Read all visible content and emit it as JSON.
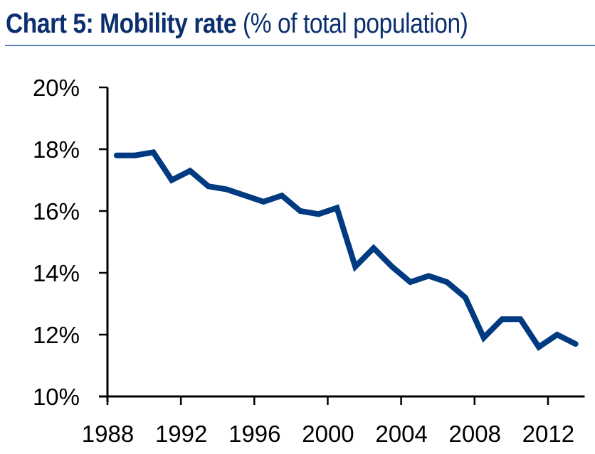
{
  "header": {
    "title_bold": "Chart 5: Mobility rate",
    "title_light": "(% of total population)"
  },
  "colors": {
    "title": "#0b2f6e",
    "rule": "#5b7db8",
    "series": "#003a80",
    "axis": "#000000"
  },
  "chart_data": {
    "type": "line",
    "title": "Chart 5: Mobility rate (% of total population)",
    "xlabel": "",
    "ylabel": "",
    "x": [
      1988,
      1989,
      1990,
      1991,
      1992,
      1993,
      1994,
      1995,
      1996,
      1997,
      1998,
      1999,
      2000,
      2001,
      2002,
      2003,
      2004,
      2005,
      2006,
      2007,
      2008,
      2009,
      2010,
      2011,
      2012,
      2013
    ],
    "series": [
      {
        "name": "Mobility rate",
        "values": [
          17.8,
          17.8,
          17.9,
          17.0,
          17.3,
          16.8,
          16.7,
          16.5,
          16.3,
          16.5,
          16.0,
          15.9,
          16.1,
          14.2,
          14.8,
          14.2,
          13.7,
          13.9,
          13.7,
          13.2,
          11.9,
          12.5,
          12.5,
          11.6,
          12.0,
          11.7
        ]
      }
    ],
    "xlim": [
      1988,
      2014
    ],
    "ylim": [
      10,
      20
    ],
    "x_ticks": [
      1988,
      1992,
      1996,
      2000,
      2004,
      2008,
      2012
    ],
    "x_tick_labels": [
      "1988",
      "1992",
      "1996",
      "2000",
      "2004",
      "2008",
      "2012"
    ],
    "y_ticks": [
      10,
      12,
      14,
      16,
      18,
      20
    ],
    "y_tick_labels": [
      "10%",
      "12%",
      "14%",
      "16%",
      "18%",
      "20%"
    ],
    "grid": false,
    "legend": "none"
  }
}
